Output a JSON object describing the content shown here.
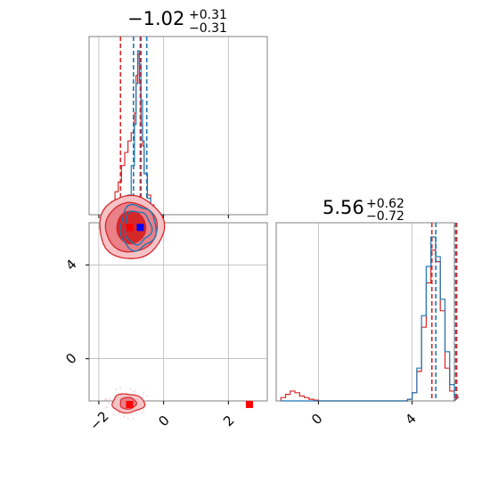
{
  "chart_data": {
    "type": "corner",
    "colors": {
      "blue": "#1f77b4",
      "red": "#d62728",
      "marker_red": "#ff0000",
      "marker_blue": "#0000ff",
      "grid": "#b0b0b0"
    },
    "titles": [
      {
        "main": "−1.02",
        "sup": "+0.31",
        "sub": "−0.31"
      },
      {
        "main": "5.56",
        "sup": "+0.62",
        "sub": "−0.72"
      }
    ],
    "param1": {
      "range": [
        -2.3,
        3.2
      ],
      "ticks": [
        -2,
        0,
        2
      ],
      "tick_labels": [
        "−2",
        "0",
        "2"
      ],
      "grid": true
    },
    "param2": {
      "range": [
        -1.8,
        5.8
      ],
      "ticks": [
        0,
        4
      ],
      "tick_labels": [
        "0",
        "4"
      ],
      "grid": true
    },
    "hist1": {
      "bins_x": [
        -1.9,
        -1.8,
        -1.7,
        -1.6,
        -1.5,
        -1.4,
        -1.3,
        -1.2,
        -1.1,
        -1.0,
        -0.9,
        -0.85,
        -0.8,
        -0.75,
        -0.7,
        -0.65,
        -0.6,
        -0.5,
        -0.4,
        -0.3,
        -0.2,
        -0.1
      ],
      "red": [
        0.01,
        0.02,
        0.04,
        0.08,
        0.14,
        0.2,
        0.3,
        0.38,
        0.45,
        0.5,
        0.62,
        0.85,
        0.98,
        0.8,
        0.55,
        0.42,
        0.25,
        0.12,
        0.06,
        0.03,
        0.01,
        0.0
      ],
      "blue": [
        0.0,
        0.0,
        0.0,
        0.0,
        0.0,
        0.0,
        0.02,
        0.05,
        0.12,
        0.3,
        0.55,
        0.8,
        1.0,
        0.92,
        0.7,
        0.45,
        0.25,
        0.1,
        0.04,
        0.01,
        0.0,
        0.0
      ],
      "red_quantiles": [
        -1.33,
        -0.7
      ],
      "blue_quantiles": [
        -0.93,
        -0.52,
        -0.72
      ]
    },
    "hist2": {
      "bins_x": [
        -1.6,
        -1.4,
        -1.2,
        -1.0,
        -0.8,
        -0.6,
        -0.4,
        -0.2,
        0.0,
        0.5,
        1.0,
        2.0,
        3.0,
        3.8,
        4.0,
        4.2,
        4.4,
        4.6,
        4.8,
        5.0,
        5.2,
        5.4,
        5.6,
        5.8
      ],
      "red": [
        0.02,
        0.04,
        0.06,
        0.05,
        0.03,
        0.02,
        0.01,
        0.005,
        0.0,
        0.0,
        0.0,
        0.0,
        0.0,
        0.01,
        0.05,
        0.18,
        0.45,
        0.72,
        0.92,
        0.85,
        0.55,
        0.2,
        0.06,
        0.02
      ],
      "blue": [
        0.0,
        0.0,
        0.0,
        0.0,
        0.0,
        0.0,
        0.0,
        0.0,
        0.0,
        0.0,
        0.0,
        0.0,
        0.0,
        0.01,
        0.05,
        0.2,
        0.52,
        0.82,
        1.0,
        0.88,
        0.62,
        0.3,
        0.1,
        0.03
      ],
      "red_quantiles": [
        4.84,
        5.9
      ],
      "blue_quantiles": [
        5.01,
        5.86,
        5.86
      ]
    },
    "contours": {
      "red_main": {
        "cx": -1.0,
        "cy": 5.6,
        "levels": [
          [
            0.45,
            0.7
          ],
          [
            0.8,
            1.05
          ],
          [
            1.0,
            1.35
          ]
        ]
      },
      "blue_main": {
        "cx": -0.8,
        "cy": 5.6,
        "levels": [
          [
            0.4,
            0.7
          ],
          [
            0.55,
            0.95
          ]
        ]
      },
      "red_minor": {
        "cx": -1.1,
        "cy": -1.9,
        "levels": [
          [
            0.25,
            0.25
          ],
          [
            0.5,
            0.4
          ]
        ]
      }
    },
    "markers": [
      {
        "x": -1.05,
        "y": 5.6,
        "color": "marker_red"
      },
      {
        "x": -0.72,
        "y": 5.6,
        "color": "marker_blue"
      },
      {
        "x": -1.05,
        "y": -1.95,
        "color": "marker_red"
      },
      {
        "x": 2.65,
        "y": -1.95,
        "color": "marker_red"
      }
    ]
  }
}
